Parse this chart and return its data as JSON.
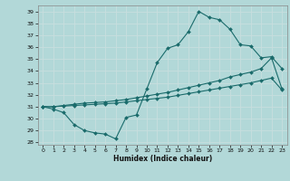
{
  "xlabel": "Humidex (Indice chaleur)",
  "background_color": "#b2d8d8",
  "grid_color": "#d0e8e8",
  "line_color": "#1a6b6b",
  "xlim": [
    -0.5,
    23.5
  ],
  "ylim": [
    27.8,
    39.5
  ],
  "yticks": [
    28,
    29,
    30,
    31,
    32,
    33,
    34,
    35,
    36,
    37,
    38,
    39
  ],
  "xticks": [
    0,
    1,
    2,
    3,
    4,
    5,
    6,
    7,
    8,
    9,
    10,
    11,
    12,
    13,
    14,
    15,
    16,
    17,
    18,
    19,
    20,
    21,
    22,
    23
  ],
  "line_upper": [
    31.0,
    30.8,
    30.5,
    29.5,
    29.0,
    28.8,
    28.7,
    28.3,
    30.1,
    30.3,
    32.5,
    34.7,
    35.9,
    36.2,
    37.3,
    39.0,
    38.5,
    38.3,
    37.5,
    36.2,
    36.1,
    35.1,
    35.2,
    34.2
  ],
  "line_mid": [
    31.0,
    31.0,
    31.1,
    31.2,
    31.3,
    31.35,
    31.4,
    31.5,
    31.6,
    31.75,
    31.9,
    32.05,
    32.2,
    32.4,
    32.6,
    32.8,
    33.0,
    33.2,
    33.5,
    33.7,
    33.9,
    34.2,
    35.1,
    32.5
  ],
  "line_lower": [
    31.0,
    31.0,
    31.05,
    31.1,
    31.15,
    31.2,
    31.25,
    31.3,
    31.4,
    31.5,
    31.6,
    31.7,
    31.8,
    31.95,
    32.1,
    32.25,
    32.4,
    32.55,
    32.7,
    32.85,
    33.0,
    33.2,
    33.4,
    32.4
  ]
}
